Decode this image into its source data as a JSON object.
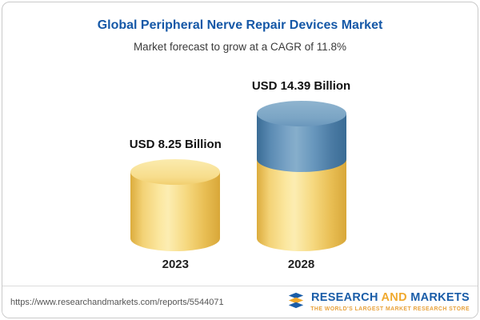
{
  "chart_data": {
    "type": "bar",
    "title": "Global Peripheral Nerve Repair Devices Market",
    "subtitle": "Market forecast to grow at a CAGR of 11.8%",
    "categories": [
      "2023",
      "2028"
    ],
    "values": [
      8.25,
      14.39
    ],
    "value_labels": [
      "USD 8.25 Billion",
      "USD 14.39 Billion"
    ],
    "unit": "USD Billion",
    "legend_position": "none",
    "grid": false,
    "colors": {
      "base_segment": "#F5D77D",
      "growth_segment": "#5E8DB4",
      "title_text": "#1558A7"
    }
  },
  "footer": {
    "url": "https://www.researchandmarkets.com/reports/5544071",
    "logo_text_1": "RESEARCH",
    "logo_text_and": "AND",
    "logo_text_2": "MARKETS",
    "tagline": "THE WORLD'S LARGEST MARKET RESEARCH STORE"
  }
}
